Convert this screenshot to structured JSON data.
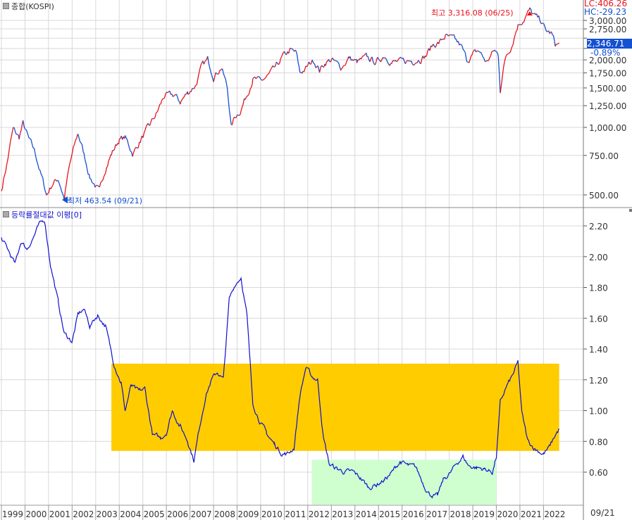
{
  "chart_data": [
    {
      "type": "line",
      "title": "종합(KOSPI)",
      "scale": "log",
      "ylim": [
        440,
        3400
      ],
      "yticks": [
        500,
        750,
        1000,
        1250,
        1500,
        1750,
        2000,
        2250,
        2500,
        2750,
        3000
      ],
      "ytick_labels": [
        "500.00",
        "750.00",
        "1,000.00",
        "1,250.00",
        "1,500.00",
        "1,750.00",
        "2,000.00",
        "2,250.00",
        "2,500.00",
        "2,750.00",
        "3,000.00"
      ],
      "up_color": "#e8121b",
      "down_color": "#1450d2",
      "x": [
        "1999-01",
        "1999-04",
        "1999-07",
        "1999-10",
        "1999-12",
        "2000-03",
        "2000-06",
        "2000-09",
        "2000-12",
        "2001-03",
        "2001-06",
        "2001-09",
        "2001-12",
        "2002-04",
        "2002-07",
        "2002-10",
        "2003-03",
        "2003-06",
        "2003-09",
        "2004-01",
        "2004-04",
        "2004-08",
        "2004-12",
        "2005-04",
        "2005-08",
        "2005-12",
        "2006-05",
        "2006-08",
        "2006-12",
        "2007-04",
        "2007-07",
        "2007-10",
        "2008-01",
        "2008-05",
        "2008-08",
        "2008-10",
        "2008-12",
        "2009-03",
        "2009-06",
        "2009-09",
        "2010-01",
        "2010-05",
        "2010-09",
        "2010-12",
        "2011-04",
        "2011-07",
        "2011-09",
        "2011-12",
        "2012-04",
        "2012-07",
        "2012-10",
        "2013-01",
        "2013-06",
        "2013-10",
        "2014-02",
        "2014-07",
        "2014-12",
        "2015-04",
        "2015-08",
        "2015-12",
        "2016-06",
        "2016-10",
        "2017-01",
        "2017-05",
        "2017-08",
        "2017-11",
        "2018-01",
        "2018-04",
        "2018-07",
        "2018-10",
        "2019-01",
        "2019-04",
        "2019-08",
        "2019-12",
        "2020-02",
        "2020-03",
        "2020-06",
        "2020-09",
        "2020-12",
        "2021-03",
        "2021-06",
        "2021-09",
        "2021-12",
        "2022-02",
        "2022-05",
        "2022-07",
        "2022-09"
      ],
      "values": [
        520,
        700,
        980,
        900,
        1040,
        880,
        780,
        620,
        500,
        560,
        590,
        480,
        690,
        940,
        760,
        600,
        515,
        660,
        760,
        880,
        900,
        760,
        880,
        1000,
        1150,
        1380,
        1390,
        1300,
        1430,
        1550,
        1860,
        2000,
        1700,
        1850,
        1500,
        1000,
        1120,
        1200,
        1400,
        1650,
        1600,
        1700,
        1860,
        2050,
        2200,
        2150,
        1750,
        1830,
        2000,
        1800,
        1950,
        2000,
        1850,
        2040,
        1950,
        2050,
        1950,
        2100,
        1950,
        1960,
        1980,
        2030,
        2080,
        2350,
        2380,
        2550,
        2500,
        2450,
        2300,
        2000,
        2100,
        2200,
        1950,
        2200,
        2100,
        1480,
        2100,
        2350,
        2870,
        3050,
        3316,
        3100,
        2980,
        2700,
        2620,
        2350,
        2346.71
      ],
      "annotations": {
        "high": "최고 3,316.08 (06/25)",
        "low": "최저 463.54 (09/21)"
      },
      "last_value": "2,346.71",
      "last_change": "-0.89%",
      "lc": "LC:406.26",
      "hc": "HC:-29.23"
    },
    {
      "type": "line",
      "title": "등락률절대값 이평[0]",
      "ylim": [
        0.38,
        2.28
      ],
      "yticks": [
        0.6,
        0.8,
        1.0,
        1.2,
        1.4,
        1.6,
        1.8,
        2.0,
        2.2
      ],
      "ytick_labels": [
        "0.60",
        "0.80",
        "1.00",
        "1.20",
        "1.40",
        "1.60",
        "1.80",
        "2.00",
        "2.20"
      ],
      "line_color": "#1010d0",
      "highlight_color": "#2a2a6a",
      "x": [
        "1999-01",
        "1999-04",
        "1999-08",
        "1999-11",
        "2000-02",
        "2000-05",
        "2000-08",
        "2000-11",
        "2001-02",
        "2001-06",
        "2001-09",
        "2002-01",
        "2002-04",
        "2002-07",
        "2002-10",
        "2003-02",
        "2003-06",
        "2003-10",
        "2004-02",
        "2004-04",
        "2004-07",
        "2004-11",
        "2005-02",
        "2005-06",
        "2005-10",
        "2006-01",
        "2006-04",
        "2006-08",
        "2006-12",
        "2007-03",
        "2007-06",
        "2007-09",
        "2007-12",
        "2008-03",
        "2008-06",
        "2008-09",
        "2008-12",
        "2009-03",
        "2009-06",
        "2009-09",
        "2009-12",
        "2010-04",
        "2010-08",
        "2010-12",
        "2011-03",
        "2011-06",
        "2011-09",
        "2011-12",
        "2012-03",
        "2012-06",
        "2012-09",
        "2012-12",
        "2013-04",
        "2013-08",
        "2013-12",
        "2014-04",
        "2014-08",
        "2014-12",
        "2015-04",
        "2015-08",
        "2015-12",
        "2016-04",
        "2016-08",
        "2016-12",
        "2017-03",
        "2017-07",
        "2017-10",
        "2018-02",
        "2018-05",
        "2018-08",
        "2018-11",
        "2019-03",
        "2019-07",
        "2019-11",
        "2020-01",
        "2020-03",
        "2020-06",
        "2020-09",
        "2020-12",
        "2021-02",
        "2021-05",
        "2021-09",
        "2022-01",
        "2022-04",
        "2022-07",
        "2022-09"
      ],
      "values": [
        2.12,
        2.05,
        1.95,
        2.1,
        2.05,
        2.12,
        2.2,
        2.24,
        1.95,
        1.7,
        1.5,
        1.45,
        1.62,
        1.66,
        1.55,
        1.62,
        1.55,
        1.32,
        1.18,
        1.0,
        1.16,
        1.12,
        1.14,
        0.84,
        0.82,
        0.86,
        1.0,
        0.9,
        0.8,
        0.68,
        0.9,
        1.1,
        1.2,
        1.25,
        1.2,
        1.72,
        1.82,
        1.87,
        1.62,
        1.05,
        0.95,
        0.85,
        0.78,
        0.72,
        0.72,
        0.76,
        1.1,
        1.28,
        1.22,
        1.2,
        0.82,
        0.65,
        0.62,
        0.6,
        0.6,
        0.56,
        0.5,
        0.52,
        0.55,
        0.6,
        0.67,
        0.64,
        0.63,
        0.52,
        0.46,
        0.44,
        0.55,
        0.6,
        0.66,
        0.7,
        0.64,
        0.63,
        0.62,
        0.6,
        0.7,
        1.05,
        1.15,
        1.22,
        1.31,
        0.98,
        0.8,
        0.75,
        0.72,
        0.76,
        0.84,
        0.88
      ],
      "zones": [
        {
          "name": "band",
          "color": "#ffcc00",
          "x": [
            "2003-09",
            "2022-09"
          ],
          "y": [
            0.738,
            1.305
          ]
        },
        {
          "name": "low-zone",
          "color": "#ccffcc",
          "x": [
            "2012-03",
            "2020-01"
          ],
          "y": [
            0.39,
            0.68
          ]
        }
      ]
    }
  ],
  "x_axis": {
    "tick_labels": [
      "1999",
      "2000",
      "2001",
      "2002",
      "2003",
      "2004",
      "2005",
      "2006",
      "2007",
      "2008",
      "2009",
      "2010",
      "2011",
      "2012",
      "2013",
      "2014",
      "2015",
      "2016",
      "2017",
      "2018",
      "2019",
      "2020",
      "2021",
      "2022"
    ],
    "cursor_label": "09/21"
  }
}
